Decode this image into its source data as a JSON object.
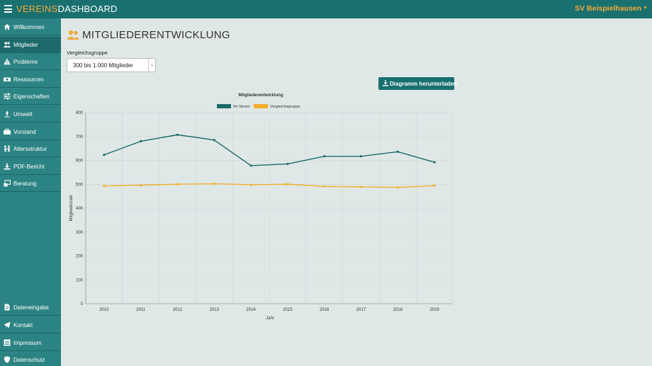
{
  "header": {
    "brand_part1": "VEREINS",
    "brand_part2": "DASHBOARD",
    "club_name": "SV Beispielhausen"
  },
  "sidebar": {
    "items": [
      {
        "label": "Willkommen",
        "icon": "home-icon"
      },
      {
        "label": "Mitglieder",
        "icon": "users-icon"
      },
      {
        "label": "Probleme",
        "icon": "warning-icon"
      },
      {
        "label": "Ressourcen",
        "icon": "money-icon"
      },
      {
        "label": "Eigenschaften",
        "icon": "sliders-icon"
      },
      {
        "label": "Umwelt",
        "icon": "leaf-icon"
      },
      {
        "label": "Vorstand",
        "icon": "briefcase-icon"
      },
      {
        "label": "Altersstruktur",
        "icon": "people-icon"
      },
      {
        "label": "PDF-Bericht",
        "icon": "download-icon"
      },
      {
        "label": "Beratung",
        "icon": "consulting-icon"
      }
    ],
    "bottom_items": [
      {
        "label": "Dateneingabe",
        "icon": "file-icon"
      },
      {
        "label": "Kontakt",
        "icon": "send-icon"
      },
      {
        "label": "Impressum",
        "icon": "list-icon"
      },
      {
        "label": "Datenschutz",
        "icon": "shield-icon"
      }
    ]
  },
  "page": {
    "title": "MITGLIEDERENTWICKLUNG",
    "compare_label": "Vergleichsgruppe",
    "compare_value": "300 bis 1.000 Mitglieder",
    "download_label": "Diagramm herunterladen"
  },
  "colors": {
    "primary": "#19706f",
    "accent": "#f2a93b",
    "series_verein": "#1b6a6c",
    "series_vergleich": "#f2ae2a"
  },
  "chart_data": {
    "type": "line",
    "title": "Mitgliederentwicklung",
    "xlabel": "Jahr",
    "ylabel": "Mitgliederzahl",
    "categories": [
      "2010",
      "2011",
      "2012",
      "2013",
      "2014",
      "2015",
      "2016",
      "2017",
      "2018",
      "2019"
    ],
    "ylim": [
      0,
      800
    ],
    "yticks": [
      0,
      100,
      200,
      300,
      400,
      500,
      600,
      700,
      800
    ],
    "grid": true,
    "legend": "top",
    "series": [
      {
        "name": "Ihr Verein",
        "values": [
          623,
          680,
          707,
          685,
          578,
          585,
          617,
          617,
          636,
          592
        ]
      },
      {
        "name": "Vergleichsgruppe",
        "values": [
          493,
          496,
          500,
          502,
          498,
          500,
          491,
          489,
          487,
          494
        ]
      }
    ]
  }
}
